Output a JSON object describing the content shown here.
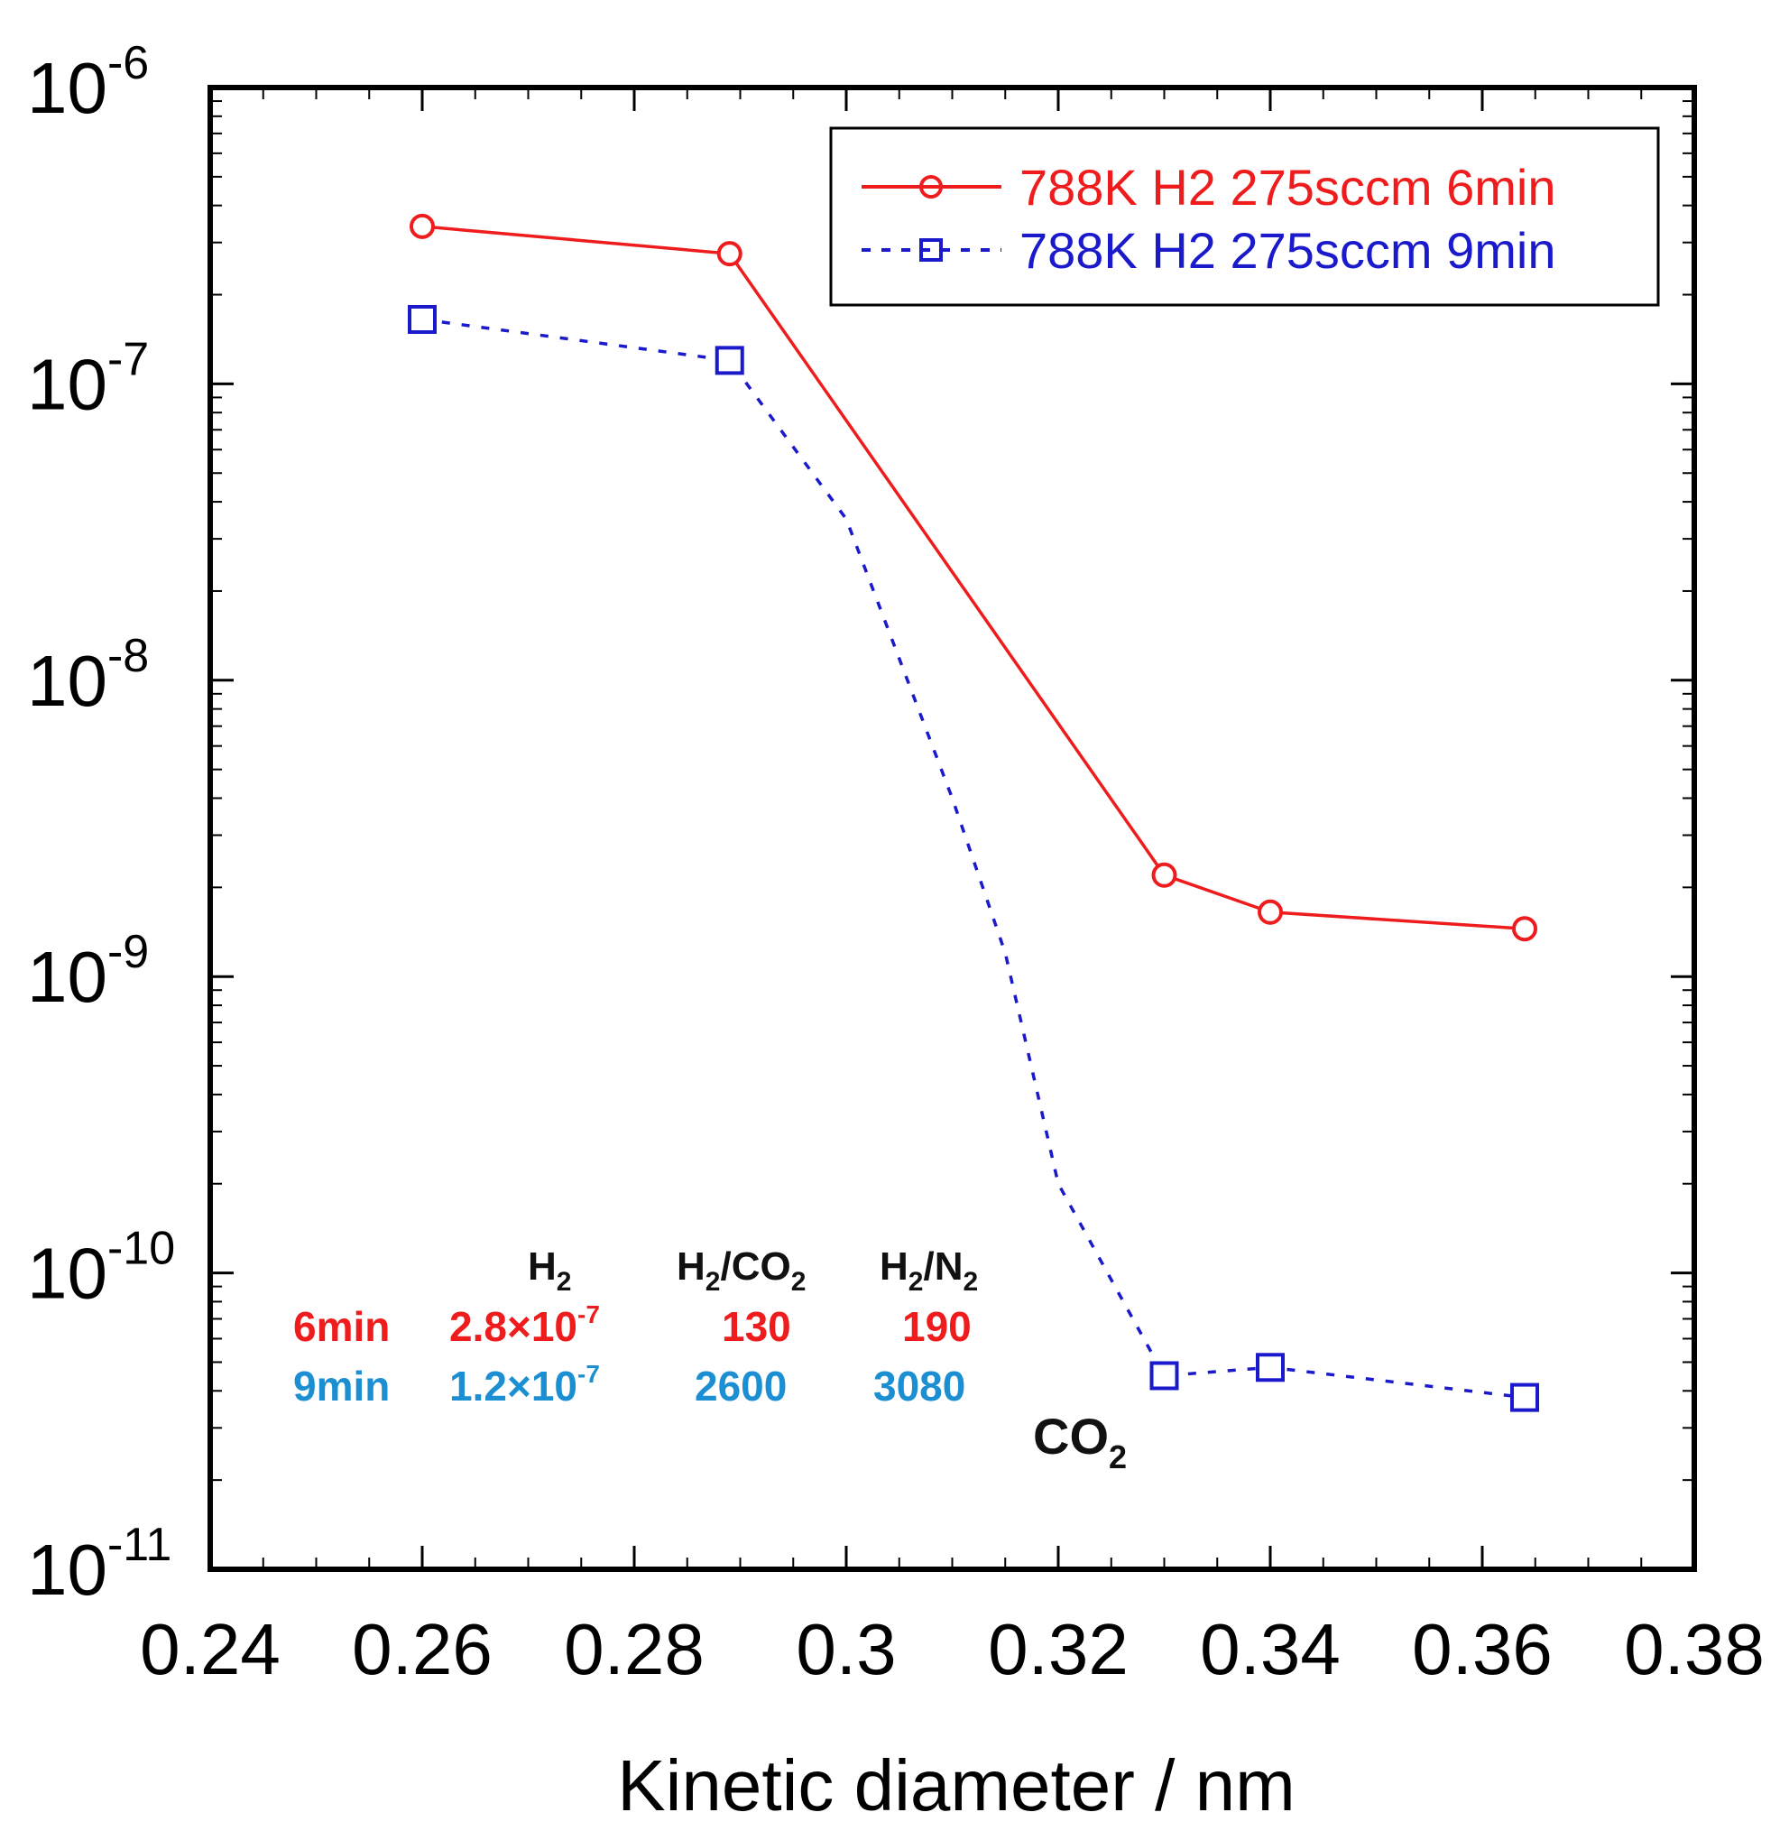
{
  "chart_data": {
    "type": "line",
    "title": "",
    "xlabel": "Kinetic diameter / nm",
    "ylabel": "",
    "xlim": [
      0.24,
      0.38
    ],
    "ylim": [
      1e-11,
      1e-06
    ],
    "yscale": "log",
    "grid": false,
    "legend_position": "top-right",
    "x_ticks": [
      "0.24",
      "0.26",
      "0.28",
      "0.3",
      "0.32",
      "0.34",
      "0.36",
      "0.38"
    ],
    "y_ticks": [
      {
        "base": "10",
        "exp": "-6"
      },
      {
        "base": "10",
        "exp": "-7"
      },
      {
        "base": "10",
        "exp": "-8"
      },
      {
        "base": "10",
        "exp": "-9"
      },
      {
        "base": "10",
        "exp": "-10"
      },
      {
        "base": "10",
        "exp": "-11"
      }
    ],
    "series": [
      {
        "name": "788K H2 275sccm 6min",
        "color": "#ee1c1c",
        "line_style": "solid",
        "marker": "circle",
        "x": [
          0.26,
          0.289,
          0.33,
          0.34,
          0.364
        ],
        "y": [
          3.4e-07,
          2.75e-07,
          2.2e-09,
          1.65e-09,
          1.45e-09
        ]
      },
      {
        "name": "788K H2 275sccm 9min",
        "color": "#1a1acc",
        "line_style": "dotted",
        "marker": "square",
        "x": [
          0.26,
          0.289,
          0.3,
          0.31,
          0.315,
          0.32,
          0.33,
          0.34,
          0.364
        ],
        "y": [
          1.65e-07,
          1.2e-07,
          3.5e-08,
          4e-09,
          1.2e-09,
          2e-10,
          4.5e-11,
          4.8e-11,
          3.8e-11
        ],
        "marker_indices": [
          0,
          1,
          6,
          7,
          8
        ]
      }
    ],
    "annotations": {
      "co2_label": {
        "main": "CO",
        "sub": "2"
      },
      "table": {
        "headers": [
          {
            "main": "H",
            "sub": "2",
            "tail": ""
          },
          {
            "main": "H",
            "sub": "2",
            "tail": "/CO",
            "tail_sub": "2"
          },
          {
            "main": "H",
            "sub": "2",
            "tail": "/N",
            "tail_sub": "2"
          }
        ],
        "rows": [
          {
            "label": "6min",
            "color": "#ee1c1c",
            "h2_mantissa": "2.8",
            "h2_exp": "-7",
            "h2_co2": "130",
            "h2_n2": "190"
          },
          {
            "label": "9min",
            "color": "#1b8fd1",
            "h2_mantissa": "1.2",
            "h2_exp": "-7",
            "h2_co2": "2600",
            "h2_n2": "3080"
          }
        ],
        "times_symbol": "×",
        "power_base": "10"
      }
    }
  }
}
